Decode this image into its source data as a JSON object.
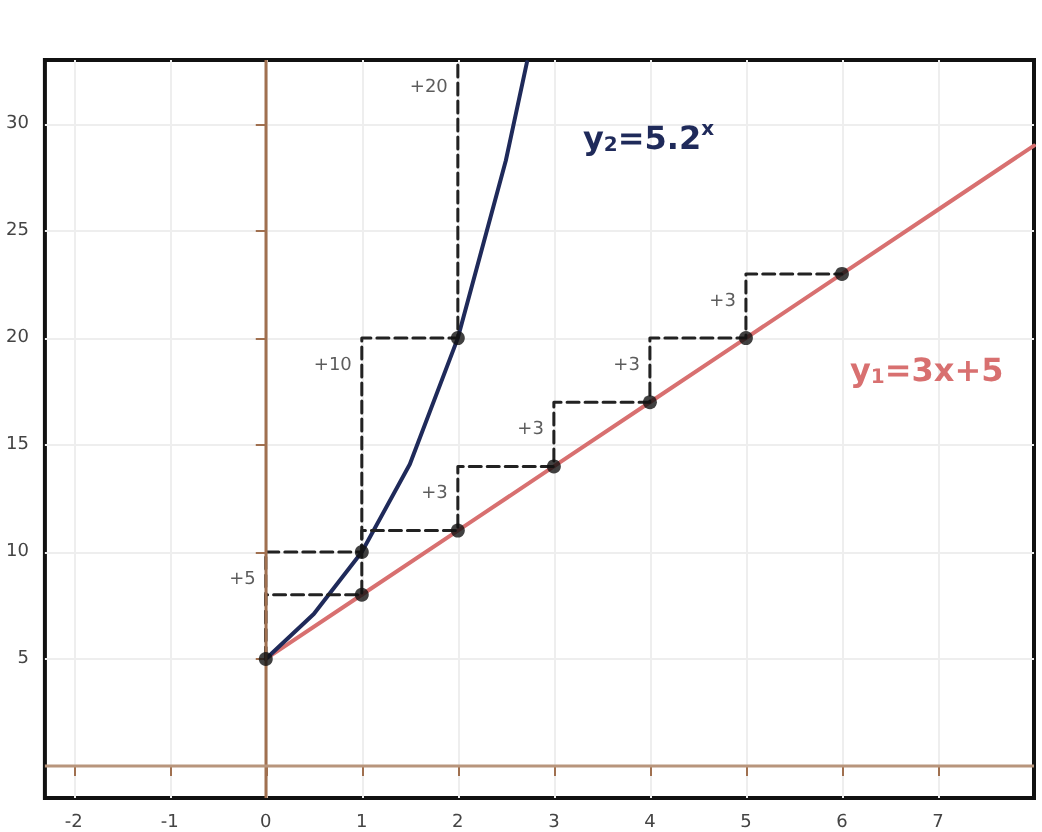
{
  "chart_data": {
    "type": "line",
    "xlim": [
      -2.3,
      8
    ],
    "ylim": [
      -1.5,
      33
    ],
    "xticks": [
      -2,
      -1,
      0,
      1,
      2,
      3,
      4,
      5,
      6,
      7
    ],
    "yticks": [
      5,
      10,
      15,
      20,
      25,
      30
    ],
    "grid": true,
    "legend": false,
    "ref_lines": [
      {
        "axis": "x",
        "value": 0,
        "color": "#a07050"
      },
      {
        "axis": "y",
        "value": 0,
        "color": "#b8957c"
      }
    ],
    "series": [
      {
        "name": "y$_{1}$=3x+5",
        "color": "#d87070",
        "x": [
          0,
          1,
          2,
          3,
          4,
          5,
          6,
          7,
          8
        ],
        "values": [
          5,
          8,
          11,
          14,
          17,
          20,
          23,
          26,
          29
        ],
        "marker": "none"
      },
      {
        "name": "y$_{2}$=5.2$^{x}$",
        "color": "#1f2a5a",
        "x": [
          0,
          0.5,
          1,
          1.5,
          2,
          2.5,
          2.72
        ],
        "values": [
          5,
          7.1,
          10,
          14.1,
          20,
          28.3,
          32.9
        ],
        "marker": "none"
      },
      {
        "color": "#222222",
        "x": [
          0,
          0,
          1,
          1,
          2,
          2,
          3,
          3,
          4,
          4,
          5,
          5,
          6
        ],
        "values": [
          5,
          8,
          8,
          11,
          11,
          14,
          14,
          17,
          17,
          20,
          20,
          23,
          23
        ],
        "marker": "none",
        "line_style": "dashed"
      },
      {
        "color": "#222222",
        "x": [
          0,
          0,
          1,
          1,
          2,
          2
        ],
        "values": [
          5,
          10,
          10,
          20,
          20,
          33
        ],
        "marker": "none",
        "line_style": "dashed"
      },
      {
        "type": "scatter",
        "color": "#111111",
        "x": [
          0,
          1,
          2,
          3,
          4,
          5,
          6,
          1,
          2
        ],
        "values": [
          5,
          8,
          11,
          14,
          17,
          20,
          23,
          10,
          20
        ],
        "marker": "circle"
      }
    ],
    "annotations": [
      {
        "text": "+5",
        "x": 0,
        "y": 10
      },
      {
        "text": "+10",
        "x": 1,
        "y": 20
      },
      {
        "text": "+20",
        "x": 2,
        "y": 33
      },
      {
        "text": "+3",
        "x": 2,
        "y": 14
      },
      {
        "text": "+3",
        "x": 3,
        "y": 17
      },
      {
        "text": "+3",
        "x": 4,
        "y": 20
      },
      {
        "text": "+3",
        "x": 5,
        "y": 23
      }
    ]
  }
}
